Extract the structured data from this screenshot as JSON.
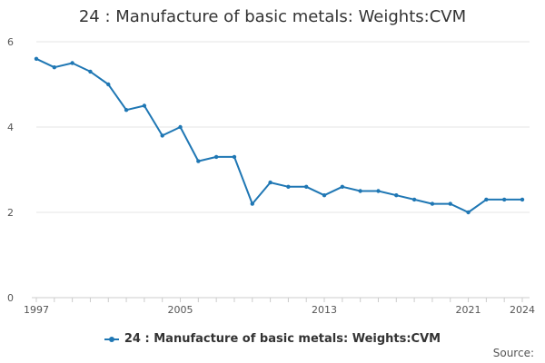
{
  "colors": {
    "series": "#1f77b4",
    "grid": "#e6e6e6",
    "axis": "#cccccc"
  },
  "source_label": "Source:",
  "chart_data": {
    "type": "line",
    "title": "24 : Manufacture of basic metals: Weights:CVM",
    "xlabel": "",
    "ylabel": "",
    "x": [
      1997,
      1998,
      1999,
      2000,
      2001,
      2002,
      2003,
      2004,
      2005,
      2006,
      2007,
      2008,
      2009,
      2010,
      2011,
      2012,
      2013,
      2014,
      2015,
      2016,
      2017,
      2018,
      2019,
      2020,
      2021,
      2022,
      2023,
      2024
    ],
    "series": [
      {
        "name": "24 : Manufacture of basic metals: Weights:CVM",
        "values": [
          5.6,
          5.4,
          5.5,
          5.3,
          5.0,
          4.4,
          4.5,
          3.8,
          4.0,
          3.2,
          3.3,
          3.3,
          2.2,
          2.7,
          2.6,
          2.6,
          2.4,
          2.6,
          2.5,
          2.5,
          2.4,
          2.3,
          2.2,
          2.2,
          2.0,
          2.3,
          2.3,
          2.3
        ]
      }
    ],
    "xlim": [
      1997,
      2024
    ],
    "ylim": [
      0,
      6
    ],
    "yticks": [
      0,
      2,
      4,
      6
    ],
    "xticks": [
      1997,
      2005,
      2013,
      2021,
      2024
    ],
    "grid": true,
    "legend": "bottom-center"
  }
}
